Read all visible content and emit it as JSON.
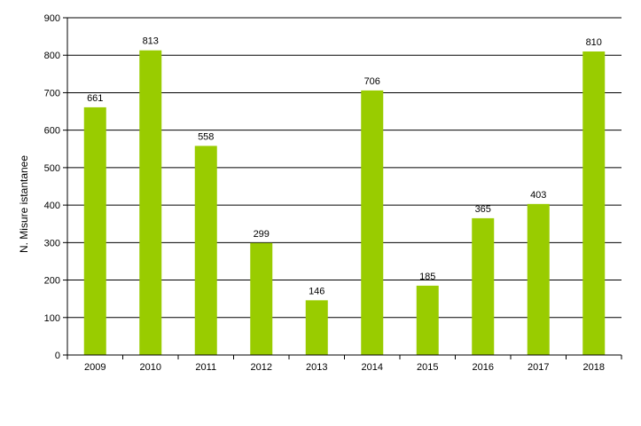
{
  "chart_data": {
    "type": "bar",
    "title": "",
    "xlabel": "",
    "ylabel": "N. Misure istantanee",
    "categories": [
      "2009",
      "2010",
      "2011",
      "2012",
      "2013",
      "2014",
      "2015",
      "2016",
      "2017",
      "2018"
    ],
    "values": [
      661,
      813,
      558,
      299,
      146,
      706,
      185,
      365,
      403,
      810
    ],
    "ylim": [
      0,
      900
    ],
    "yticks": [
      0,
      100,
      200,
      300,
      400,
      500,
      600,
      700,
      800,
      900
    ],
    "grid": true,
    "legend": "none",
    "bar_color": "#99cc00",
    "data_labels": true
  }
}
